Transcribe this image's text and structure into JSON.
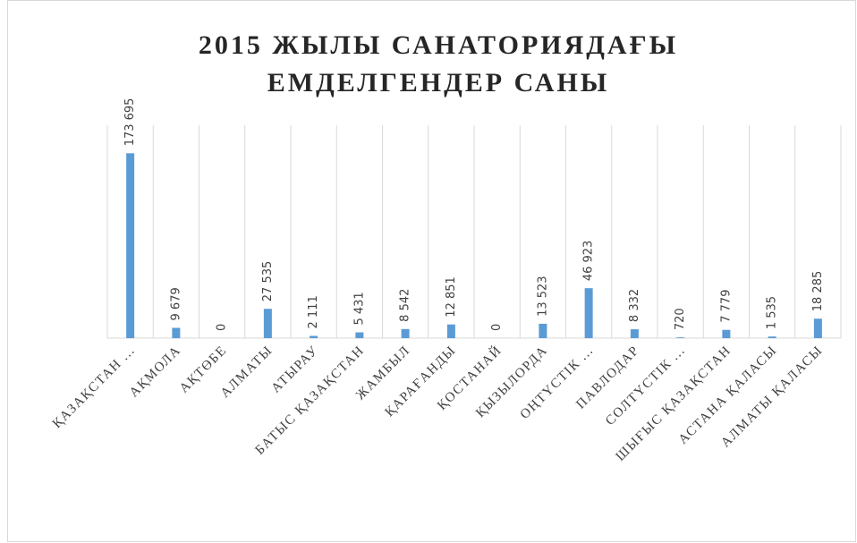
{
  "chart_data": {
    "type": "bar",
    "title": [
      "2015 ЖЫЛЫ САНАТОРИЯДАҒЫ",
      "ЕМДЕЛГЕНДЕР САНЫ"
    ],
    "categories": [
      "ҚАЗАҚСТАН ...",
      "АҚМОЛА",
      "АҚТӨБЕ",
      "АЛМАТЫ",
      "АТЫРАУ",
      "БАТЫС ҚАЗАҚСТАН",
      "ЖАМБЫЛ",
      "ҚАРАҒАНДЫ",
      "ҚОСТАНАЙ",
      "ҚЫЗЫЛОРДА",
      "ОҢТҮСТІК ...",
      "ПАВЛОДАР",
      "СОЛТҮСТІК ...",
      "ШЫҒЫС ҚАЗАҚСТАН",
      "АСТАНА ҚАЛАСЫ",
      "АЛМАТЫ ҚАЛАСЫ"
    ],
    "values": [
      173695,
      9679,
      0,
      27535,
      2111,
      5431,
      8542,
      12851,
      0,
      13523,
      46923,
      8332,
      720,
      7779,
      1535,
      18285
    ],
    "value_labels": [
      "173 695",
      "9 679",
      "0",
      "27 535",
      "2 111",
      "5 431",
      "8 542",
      "12 851",
      "0",
      "13 523",
      "46 923",
      "8 332",
      "720",
      "7 779",
      "1 535",
      "18 285"
    ],
    "color": "#5b9bd5",
    "ylim": [
      0,
      200000
    ]
  }
}
